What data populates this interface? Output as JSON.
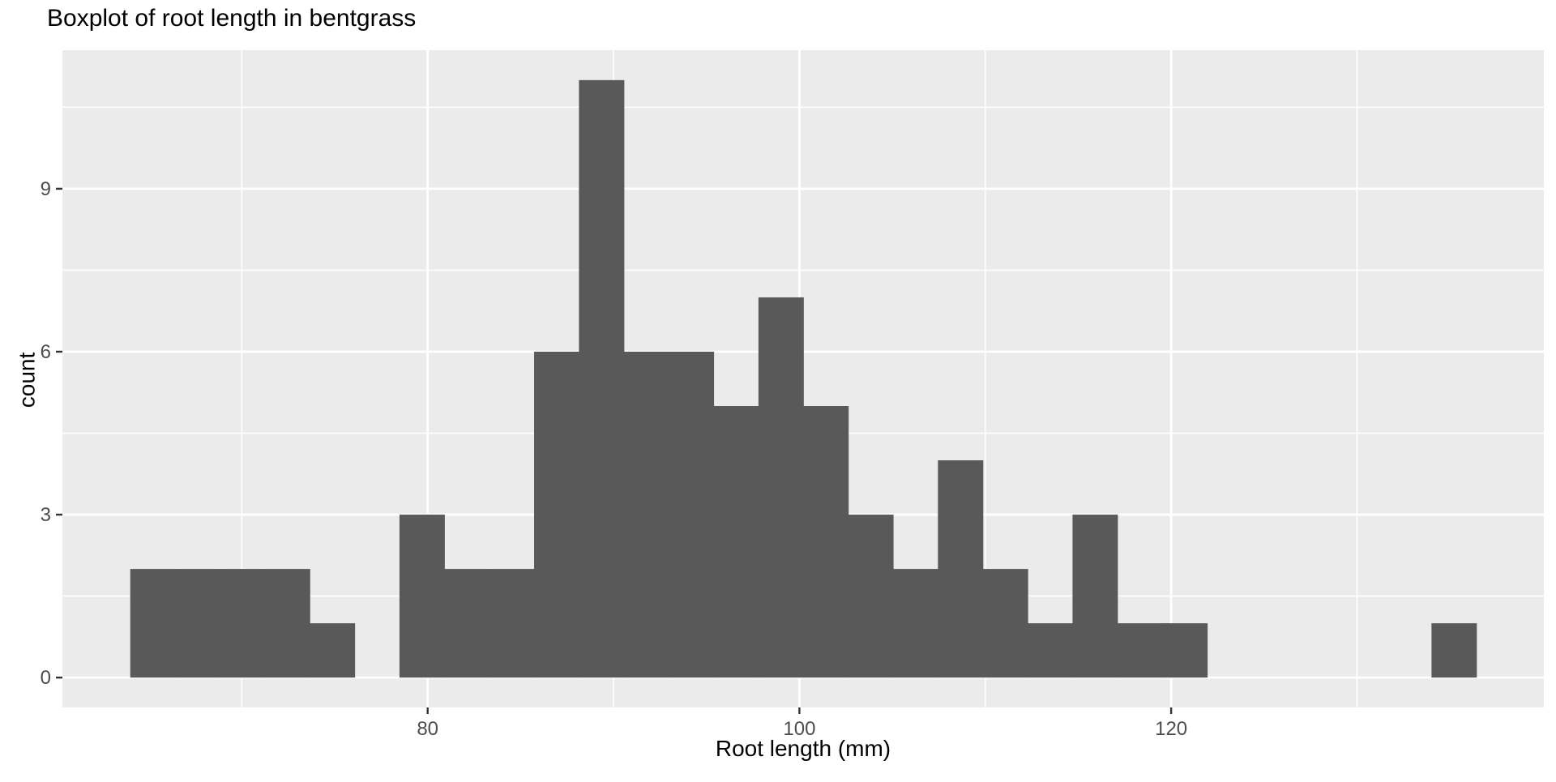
{
  "title": "Boxplot of root length in bentgrass",
  "chart_data": {
    "type": "histogram",
    "title": "Boxplot of root length in bentgrass",
    "xlabel": "Root length (mm)",
    "ylabel": "count",
    "bin_start_mm": 64.0,
    "bin_width_mm": 2.414,
    "counts": [
      2,
      2,
      2,
      2,
      1,
      0,
      3,
      2,
      2,
      6,
      11,
      6,
      6,
      5,
      7,
      5,
      3,
      2,
      4,
      2,
      1,
      3,
      1,
      1,
      0,
      0,
      0,
      0,
      0,
      1
    ],
    "n_total": 80,
    "x_ticks": [
      80,
      100,
      120
    ],
    "y_ticks": [
      0,
      3,
      6,
      9
    ],
    "x_minor": [
      70,
      90,
      110,
      130
    ],
    "y_minor": [
      1.5,
      4.5,
      7.5,
      10.5
    ],
    "xlim": [
      60.35,
      140.05
    ],
    "ylim": [
      -0.55,
      11.55
    ],
    "grid": "on",
    "legend": "none",
    "colors": {
      "bar_fill": "#595959",
      "panel_bg": "#EBEBEB",
      "grid": "#FFFFFF",
      "tick_label": "#4D4D4D",
      "tick_mark": "#333333",
      "text": "#000000"
    }
  }
}
